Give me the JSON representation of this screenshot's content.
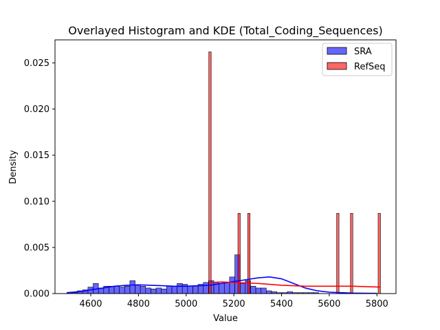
{
  "chart_data": {
    "type": "bar",
    "title": "Overlayed Histogram and KDE (Total_Coding_Sequences)",
    "xlabel": "Value",
    "ylabel": "Density",
    "xlim": [
      4450,
      5880
    ],
    "ylim": [
      0,
      0.0275
    ],
    "x_ticks": [
      "4600",
      "4800",
      "5000",
      "5200",
      "5400",
      "5600",
      "5800"
    ],
    "y_ticks": [
      "0.000",
      "0.005",
      "0.010",
      "0.015",
      "0.020",
      "0.025"
    ],
    "legend_position": "top-right",
    "series": [
      {
        "name": "SRA",
        "color": "#0000ff",
        "bar_alpha": 0.6,
        "bin_start": 4500,
        "bin_width": 22,
        "densities": [
          0.0001,
          0.0001,
          0.0003,
          0.0004,
          0.0007,
          0.0011,
          0.0006,
          0.0008,
          0.0008,
          0.0008,
          0.0007,
          0.0008,
          0.0014,
          0.0009,
          0.0008,
          0.0006,
          0.0005,
          0.0006,
          0.0005,
          0.0008,
          0.0008,
          0.0011,
          0.001,
          0.0008,
          0.0008,
          0.001,
          0.0012,
          0.0014,
          0.0012,
          0.0011,
          0.0012,
          0.0018,
          0.0042,
          0.0011,
          0.0014,
          0.0008,
          0.0006,
          0.0006,
          0.0003,
          0.0002,
          0.0001,
          0.0001,
          0.0002,
          0.0001,
          0.0001,
          0.0001,
          0.0001,
          0.0001
        ],
        "kde": {
          "x": [
            4500,
            4550,
            4600,
            4650,
            4700,
            4750,
            4800,
            4850,
            4900,
            4950,
            5000,
            5050,
            5100,
            5150,
            5200,
            5250,
            5300,
            5350,
            5400,
            5450,
            5500,
            5550,
            5600,
            5650,
            5700,
            5750,
            5800
          ],
          "y": [
            0.0001,
            0.0002,
            0.0004,
            0.0006,
            0.0008,
            0.0009,
            0.00095,
            0.0009,
            0.00085,
            0.0008,
            0.0008,
            0.00085,
            0.0009,
            0.0011,
            0.0013,
            0.0015,
            0.0017,
            0.0018,
            0.0016,
            0.0011,
            0.0006,
            0.0003,
            0.00015,
            0.0001,
            5e-05,
            3e-05,
            2e-05
          ]
        }
      },
      {
        "name": "RefSeq",
        "color": "#ff0000",
        "bar_alpha": 0.6,
        "bars": [
          {
            "x0": 5095,
            "x1": 5105,
            "density": 0.0262
          },
          {
            "x0": 5217,
            "x1": 5227,
            "density": 0.0087
          },
          {
            "x0": 5258,
            "x1": 5268,
            "density": 0.0087
          },
          {
            "x0": 5631,
            "x1": 5641,
            "density": 0.0087
          },
          {
            "x0": 5689,
            "x1": 5699,
            "density": 0.0087
          },
          {
            "x0": 5805,
            "x1": 5815,
            "density": 0.0087
          }
        ],
        "kde": {
          "x": [
            5100,
            5150,
            5200,
            5250,
            5300,
            5350,
            5400,
            5450,
            5500,
            5550,
            5600,
            5650,
            5700,
            5750,
            5815
          ],
          "y": [
            0.0012,
            0.00125,
            0.0012,
            0.00115,
            0.0011,
            0.001,
            0.0009,
            0.00085,
            0.0008,
            0.0008,
            0.0008,
            0.0008,
            0.0008,
            0.00075,
            0.0007
          ]
        }
      }
    ]
  }
}
